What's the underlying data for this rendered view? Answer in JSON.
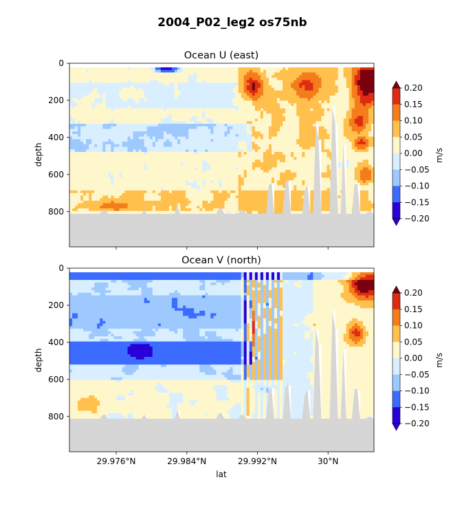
{
  "figure": {
    "suptitle": "2004_P02_leg2 os75nb"
  },
  "levels": [
    -0.2,
    -0.15,
    -0.1,
    -0.05,
    0.0,
    0.05,
    0.1,
    0.15,
    0.2
  ],
  "colors": {
    "under": "#2a00d8",
    "bins": [
      "#2a00d8",
      "#3c6cff",
      "#9ec9ff",
      "#d9efff",
      "#fff7cc",
      "#ffc04d",
      "#f47c1b",
      "#de2c12"
    ],
    "over": "#7a0010",
    "land": "#d6d6d6"
  },
  "chart_data": [
    {
      "type": "heatmap",
      "title": "Ocean U (east)",
      "xlabel": "",
      "ylabel": "depth",
      "colorbar_label": "m/s",
      "colorbar_ticks": [
        "0.20",
        "0.15",
        "0.10",
        "0.05",
        "0.00",
        "−0.05",
        "−0.10",
        "−0.15",
        "−0.20"
      ],
      "xlim": [
        29.9707,
        30.0052
      ],
      "ylim": [
        990,
        0
      ],
      "yticks": [
        "0",
        "200",
        "400",
        "600",
        "800"
      ],
      "xticks": [
        29.976,
        29.984,
        29.992,
        30.0
      ],
      "xtick_labels": []
    },
    {
      "type": "heatmap",
      "title": "Ocean V (north)",
      "xlabel": "lat",
      "ylabel": "depth",
      "colorbar_label": "m/s",
      "colorbar_ticks": [
        "0.20",
        "0.15",
        "0.10",
        "0.05",
        "0.00",
        "−0.05",
        "−0.10",
        "−0.15",
        "−0.20"
      ],
      "xlim": [
        29.9707,
        30.0052
      ],
      "ylim": [
        990,
        0
      ],
      "yticks": [
        "0",
        "200",
        "400",
        "600",
        "800"
      ],
      "xticks": [
        29.976,
        29.984,
        29.992,
        30.0
      ],
      "xtick_labels": [
        "29.976°N",
        "29.984°N",
        "29.992°N",
        "30°N"
      ]
    }
  ]
}
